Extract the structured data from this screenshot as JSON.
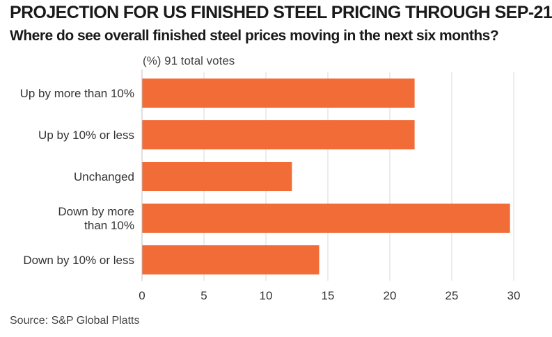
{
  "chart_data": {
    "type": "bar",
    "orientation": "horizontal",
    "title": "PROJECTION FOR US FINISHED STEEL PRICING THROUGH SEP-21",
    "subtitle": "Where do see overall finished steel prices moving in the next six months?",
    "unit_note": "(%) 91 total votes",
    "source": "Source: S&P Global Platts",
    "categories": [
      [
        "Up by more than 10%"
      ],
      [
        "Up by 10% or less"
      ],
      [
        "Unchanged"
      ],
      [
        "Down by more",
        "than 10%"
      ],
      [
        "Down by 10% or less"
      ]
    ],
    "values": [
      22.0,
      22.0,
      12.1,
      29.7,
      14.3
    ],
    "xlim": [
      0,
      30
    ],
    "xticks": [
      "0",
      "5",
      "10",
      "15",
      "20",
      "25",
      "30"
    ],
    "grid": true,
    "bar_color": "#f26c37",
    "grid_color": "#d9d9d9"
  }
}
